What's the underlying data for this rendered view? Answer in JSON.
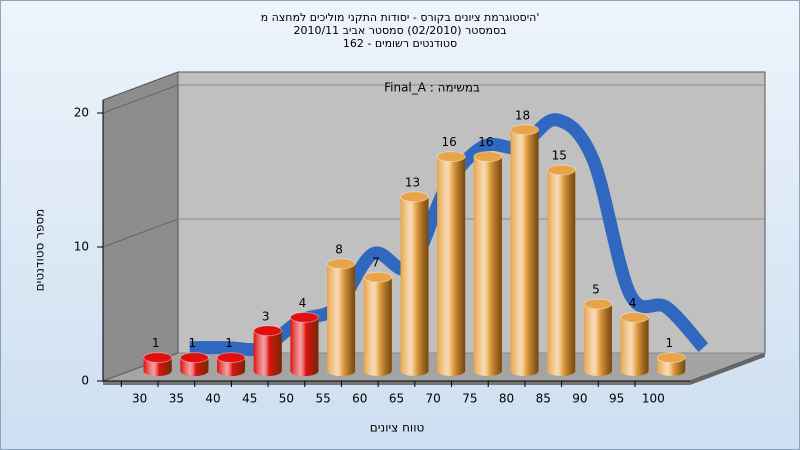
{
  "chart_data": {
    "type": "bar3d",
    "title": [
      "היסטוגרמת ציונים בקורס - יסודות התקני מוליכים למחצה מ'",
      "בסמסטר (02/2010)  סמסטר אביב 2010/11",
      "סטודנטים רשומים - 162"
    ],
    "annotation": "במשימה : Final_A",
    "x_label": "טווח ציונים",
    "y_label": "מספר סטודנטים",
    "categories": [
      "30",
      "35",
      "40",
      "45",
      "50",
      "55",
      "60",
      "65",
      "70",
      "75",
      "80",
      "85",
      "90",
      "95",
      "100"
    ],
    "values": [
      1,
      1,
      1,
      3,
      4,
      8,
      7,
      13,
      16,
      16,
      18,
      15,
      5,
      4,
      1
    ],
    "colors": [
      "#e01010",
      "#e01010",
      "#e01010",
      "#e01010",
      "#e01010",
      "#e8a448",
      "#e8a448",
      "#e8a448",
      "#e8a448",
      "#e8a448",
      "#e8a448",
      "#e8a448",
      "#e8a448",
      "#e8a448",
      "#e8a448"
    ],
    "trend_color": "#3068c0",
    "ylim": [
      0,
      20
    ],
    "yticks": [
      0,
      10,
      20
    ],
    "grid": true
  }
}
